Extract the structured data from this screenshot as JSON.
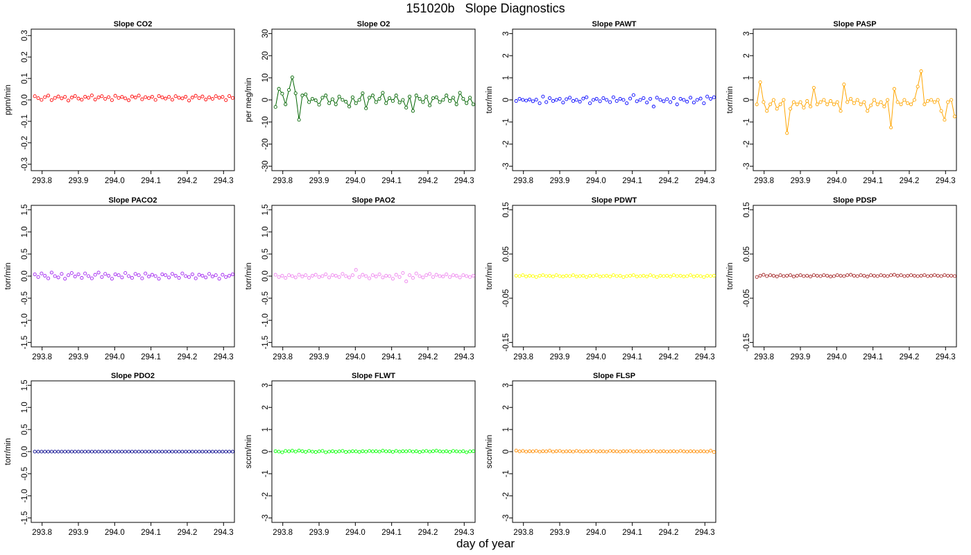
{
  "page": {
    "title": "151020b   Slope Diagnostics",
    "xlabel": "day of year"
  },
  "chart_data": [
    {
      "type": "scatter",
      "title": "Slope CO2",
      "ylabel": "ppm/min",
      "color": "#ff0000",
      "xlim": [
        293.77,
        294.33
      ],
      "xticks": [
        "293.8",
        "293.9",
        "294.0",
        "294.1",
        "294.2",
        "294.3"
      ],
      "ylim": [
        -0.33,
        0.33
      ],
      "yticks": [
        "-0.3",
        "-0.2",
        "-0.1",
        "0.0",
        "0.1",
        "0.2",
        "0.3"
      ],
      "connected": false,
      "x_start": 293.78,
      "x_end": 294.325,
      "base": 0.005,
      "series_values": [
        0.012,
        0.003,
        -0.005,
        0.008,
        0.015,
        -0.006,
        0.004,
        0.011,
        0.002,
        0.009,
        -0.008,
        0.006,
        0.013,
        0.001,
        -0.004,
        0.01,
        0.005,
        0.016,
        -0.003,
        0.007,
        0.012,
        0.0,
        0.008,
        -0.006,
        0.014,
        0.004,
        0.009,
        0.002,
        -0.007,
        0.011,
        0.006,
        0.015,
        -0.002,
        0.008,
        0.003,
        0.01,
        -0.005,
        0.013,
        0.007,
        0.001,
        0.009,
        -0.004,
        0.012,
        0.005,
        0.002,
        0.01,
        -0.008,
        0.006,
        0.014,
        0.003,
        0.011,
        -0.003,
        0.007,
        0.0,
        0.012,
        0.005,
        0.009,
        -0.006,
        0.013,
        0.004
      ]
    },
    {
      "type": "scatter",
      "title": "Slope O2",
      "ylabel": "per meg/min",
      "color": "#006400",
      "xlim": [
        293.77,
        294.33
      ],
      "xticks": [
        "293.8",
        "293.9",
        "294.0",
        "294.1",
        "294.2",
        "294.3"
      ],
      "ylim": [
        -32,
        32
      ],
      "yticks": [
        "-30",
        "-20",
        "-10",
        "0",
        "10",
        "20",
        "30"
      ],
      "connected": true,
      "x_start": 293.78,
      "x_end": 294.325,
      "base": 0,
      "series_values": [
        -3.2,
        5.0,
        2.8,
        -2.0,
        4.5,
        10.2,
        3.0,
        -9.0,
        2.0,
        2.5,
        -1.0,
        0.5,
        -0.2,
        -2.2,
        1.0,
        2.0,
        -1.5,
        0.3,
        -2.0,
        1.5,
        0.0,
        -0.8,
        -3.0,
        1.2,
        -1.5,
        0.0,
        3.0,
        -3.8,
        1.0,
        2.0,
        -1.0,
        0.5,
        3.2,
        -1.5,
        0.8,
        -0.5,
        2.0,
        -1.2,
        0.0,
        -3.5,
        1.5,
        -5.0,
        2.0,
        0.5,
        -1.0,
        1.5,
        -2.5,
        0.8,
        1.2,
        -1.0,
        0.0,
        2.0,
        -0.5,
        1.0,
        -2.0,
        3.2,
        0.5,
        -1.5,
        1.0,
        -2.0
      ]
    },
    {
      "type": "scatter",
      "title": "Slope PAWT",
      "ylabel": "torr/min",
      "color": "#0000ff",
      "xlim": [
        293.77,
        294.33
      ],
      "xticks": [
        "293.8",
        "293.9",
        "294.0",
        "294.1",
        "294.2",
        "294.3"
      ],
      "ylim": [
        -3.2,
        3.2
      ],
      "yticks": [
        "-3",
        "-2",
        "-1",
        "0",
        "1",
        "2",
        "3"
      ],
      "connected": false,
      "x_start": 293.78,
      "x_end": 294.325,
      "base": 0,
      "series_values": [
        -0.05,
        0.05,
        0.0,
        -0.03,
        0.02,
        -0.06,
        0.01,
        -0.15,
        0.15,
        -0.1,
        0.08,
        -0.05,
        0.0,
        0.05,
        -0.12,
        0.03,
        0.1,
        -0.05,
        0.0,
        -0.08,
        0.06,
        0.12,
        -0.15,
        0.0,
        0.05,
        -0.06,
        0.08,
        0.0,
        -0.1,
        0.12,
        -0.05,
        0.05,
        0.0,
        -0.15,
        0.06,
        0.22,
        -0.06,
        0.0,
        0.08,
        -0.12,
        0.05,
        -0.3,
        0.1,
        0.0,
        -0.06,
        0.03,
        -0.1,
        0.08,
        -0.2,
        0.05,
        0.0,
        -0.08,
        0.1,
        -0.12,
        0.0,
        0.06,
        -0.15,
        0.15,
        0.05,
        0.12
      ]
    },
    {
      "type": "scatter",
      "title": "Slope PASP",
      "ylabel": "torr/min",
      "color": "#ffa500",
      "xlim": [
        293.77,
        294.33
      ],
      "xticks": [
        "293.8",
        "293.9",
        "294.0",
        "294.1",
        "294.2",
        "294.3"
      ],
      "ylim": [
        -3.2,
        3.2
      ],
      "yticks": [
        "-3",
        "-2",
        "-1",
        "0",
        "1",
        "2",
        "3"
      ],
      "connected": true,
      "x_start": 293.78,
      "x_end": 294.325,
      "base": 0,
      "series_values": [
        -0.2,
        0.8,
        -0.1,
        -0.5,
        -0.2,
        0.0,
        -0.4,
        -0.2,
        0.0,
        -1.5,
        -0.4,
        -0.1,
        -0.2,
        -0.1,
        -0.35,
        -0.05,
        -0.3,
        0.55,
        -0.2,
        -0.1,
        0.0,
        -0.2,
        -0.05,
        -0.2,
        -0.1,
        -0.5,
        0.7,
        -0.1,
        0.05,
        -0.15,
        0.0,
        -0.2,
        -0.1,
        -0.5,
        -0.25,
        0.0,
        -0.2,
        -0.1,
        -0.3,
        0.0,
        -1.25,
        0.5,
        -0.1,
        -0.2,
        0.0,
        -0.15,
        -0.2,
        0.0,
        0.6,
        1.3,
        -0.2,
        -0.05,
        0.0,
        -0.1,
        0.0,
        -0.5,
        -0.9,
        -0.1,
        0.0,
        -0.75
      ]
    },
    {
      "type": "scatter",
      "title": "Slope PACO2",
      "ylabel": "torr/min",
      "color": "#a020f0",
      "xlim": [
        293.77,
        294.33
      ],
      "xticks": [
        "293.8",
        "293.9",
        "294.0",
        "294.1",
        "294.2",
        "294.3"
      ],
      "ylim": [
        -1.6,
        1.6
      ],
      "yticks": [
        "-1.5",
        "-1.0",
        "-0.5",
        "0.0",
        "0.5",
        "1.0",
        "1.5"
      ],
      "connected": false,
      "x_start": 293.78,
      "x_end": 294.325,
      "base": 0,
      "series_values": [
        0.04,
        -0.02,
        0.06,
        0.01,
        -0.05,
        0.08,
        0.0,
        -0.03,
        0.05,
        -0.06,
        0.02,
        0.07,
        -0.01,
        0.04,
        -0.04,
        0.06,
        0.0,
        -0.05,
        0.03,
        0.08,
        -0.02,
        0.05,
        0.01,
        -0.06,
        0.04,
        0.02,
        -0.03,
        0.07,
        0.0,
        -0.04,
        0.05,
        0.02,
        -0.05,
        0.06,
        -0.01,
        0.03,
        0.0,
        -0.06,
        0.04,
        0.02,
        -0.03,
        0.05,
        0.01,
        -0.04,
        0.06,
        0.0,
        -0.02,
        0.04,
        -0.05,
        0.03,
        0.01,
        -0.03,
        0.05,
        -0.01,
        0.02,
        -0.06,
        0.03,
        -0.02,
        0.01,
        0.04
      ]
    },
    {
      "type": "scatter",
      "title": "Slope PAO2",
      "ylabel": "torr/min",
      "color": "#ee82ee",
      "xlim": [
        293.77,
        294.33
      ],
      "xticks": [
        "293.8",
        "293.9",
        "294.0",
        "294.1",
        "294.2",
        "294.3"
      ],
      "ylim": [
        -1.6,
        1.6
      ],
      "yticks": [
        "-1.5",
        "-1.0",
        "-0.5",
        "0.0",
        "0.5",
        "1.0",
        "1.5"
      ],
      "connected": false,
      "x_start": 293.78,
      "x_end": 294.325,
      "base": 0,
      "series_values": [
        0.03,
        -0.02,
        0.01,
        -0.04,
        0.02,
        0.0,
        -0.03,
        0.03,
        -0.01,
        0.02,
        -0.04,
        0.01,
        0.03,
        -0.02,
        0.0,
        0.04,
        -0.03,
        0.02,
        0.01,
        -0.02,
        0.05,
        0.0,
        -0.03,
        0.02,
        0.14,
        -0.02,
        0.03,
        0.0,
        -0.05,
        0.02,
        -0.01,
        0.04,
        -0.03,
        0.01,
        0.0,
        -0.06,
        0.03,
        -0.02,
        0.07,
        -0.12,
        0.02,
        -0.04,
        0.06,
        0.0,
        -0.03,
        0.02,
        0.05,
        -0.02,
        0.03,
        0.0,
        -0.01,
        0.04,
        -0.02,
        0.02,
        0.01,
        -0.03,
        0.02,
        0.0,
        -0.02,
        0.01
      ]
    },
    {
      "type": "scatter",
      "title": "Slope PDWT",
      "ylabel": "torr/min",
      "color": "#ffff00",
      "xlim": [
        293.77,
        294.33
      ],
      "xticks": [
        "293.8",
        "293.9",
        "294.0",
        "294.1",
        "294.2",
        "294.3"
      ],
      "ylim": [
        -0.16,
        0.16
      ],
      "yticks": [
        "-0.15",
        "-0.05",
        "0.05",
        "0.15"
      ],
      "connected": false,
      "x_start": 293.78,
      "x_end": 294.325,
      "base": 0.0,
      "series_values": [
        0.001,
        0.0,
        0.002,
        -0.001,
        0.001,
        0.0,
        -0.002,
        0.001,
        0.002,
        0.0,
        0.001,
        -0.001,
        0.002,
        0.0,
        -0.001,
        0.001,
        0.0,
        0.002,
        -0.001,
        0.0,
        0.001,
        -0.002,
        0.001,
        0.0,
        0.002,
        -0.001,
        0.0,
        0.001,
        -0.001,
        0.002,
        0.0,
        0.001,
        -0.002,
        0.0,
        0.001,
        0.002,
        -0.001,
        0.0,
        0.001,
        -0.001,
        0.002,
        0.0,
        -0.002,
        0.001,
        0.0,
        0.001,
        -0.001,
        0.002,
        0.0,
        0.001,
        -0.001,
        0.0,
        0.002,
        -0.001,
        0.001,
        0.0,
        -0.002,
        0.001,
        0.0,
        0.001
      ]
    },
    {
      "type": "scatter",
      "title": "Slope PDSP",
      "ylabel": "torr/min",
      "color": "#a52a2a",
      "xlim": [
        293.77,
        294.33
      ],
      "xticks": [
        "293.8",
        "293.9",
        "294.0",
        "294.1",
        "294.2",
        "294.3"
      ],
      "ylim": [
        -0.16,
        0.16
      ],
      "yticks": [
        "-0.15",
        "-0.05",
        "0.05",
        "0.15"
      ],
      "connected": false,
      "x_start": 293.78,
      "x_end": 294.325,
      "base": 0.0,
      "series_values": [
        -0.002,
        0.001,
        0.003,
        0.0,
        0.002,
        0.001,
        -0.001,
        0.002,
        0.0,
        0.001,
        0.002,
        -0.001,
        0.001,
        0.002,
        0.0,
        0.001,
        -0.001,
        0.002,
        0.001,
        0.0,
        0.002,
        0.001,
        -0.001,
        0.0,
        0.002,
        0.001,
        0.0,
        0.002,
        0.003,
        0.001,
        0.0,
        0.002,
        0.001,
        -0.001,
        0.002,
        0.001,
        0.0,
        0.002,
        0.001,
        0.0,
        0.002,
        0.003,
        0.001,
        0.002,
        0.0,
        0.001,
        0.002,
        0.001,
        0.0,
        0.001,
        0.002,
        0.0,
        0.001,
        0.002,
        0.001,
        0.0,
        0.002,
        0.001,
        0.001,
        0.0
      ]
    },
    {
      "type": "scatter",
      "title": "Slope PDO2",
      "ylabel": "torr/min",
      "color": "#00008b",
      "xlim": [
        293.77,
        294.33
      ],
      "xticks": [
        "293.8",
        "293.9",
        "294.0",
        "294.1",
        "294.2",
        "294.3"
      ],
      "ylim": [
        -1.6,
        1.6
      ],
      "yticks": [
        "-1.5",
        "-1.0",
        "-0.5",
        "0.0",
        "0.5",
        "1.0",
        "1.5"
      ],
      "connected": false,
      "x_start": 293.78,
      "x_end": 294.325,
      "base": 0.0,
      "series_values": [
        0,
        0,
        0,
        0,
        0,
        0,
        0,
        0,
        0,
        0,
        0,
        0,
        0,
        0,
        0,
        0,
        0,
        0,
        0,
        0,
        0,
        0,
        0,
        0,
        0,
        0,
        0,
        0,
        0,
        0,
        0,
        0,
        0,
        0,
        0,
        0,
        0,
        0,
        0,
        0,
        0,
        0,
        0,
        0,
        0,
        0,
        0,
        0,
        0,
        0,
        0,
        0,
        0,
        0,
        0,
        0,
        0,
        0,
        0,
        0
      ]
    },
    {
      "type": "scatter",
      "title": "Slope FLWT",
      "ylabel": "sccm/min",
      "color": "#00ff00",
      "xlim": [
        293.77,
        294.33
      ],
      "xticks": [
        "293.8",
        "293.9",
        "294.0",
        "294.1",
        "294.2",
        "294.3"
      ],
      "ylim": [
        -3.2,
        3.2
      ],
      "yticks": [
        "-3",
        "-2",
        "-1",
        "0",
        "1",
        "2",
        "3"
      ],
      "connected": false,
      "x_start": 293.78,
      "x_end": 294.325,
      "base": 0.0,
      "series_values": [
        0.02,
        0.0,
        -0.03,
        0.03,
        0.01,
        0.04,
        0.0,
        0.05,
        0.02,
        -0.01,
        0.03,
        0.0,
        -0.02,
        0.01,
        0.03,
        -0.03,
        0.0,
        0.02,
        -0.01,
        0.01,
        0.03,
        -0.02,
        0.0,
        0.02,
        0.01,
        -0.01,
        0.02,
        0.0,
        0.03,
        0.01,
        0.02,
        0.0,
        0.04,
        0.01,
        0.02,
        -0.01,
        0.03,
        0.0,
        0.02,
        0.01,
        0.03,
        0.0,
        0.02,
        -0.02,
        0.01,
        0.03,
        0.0,
        0.02,
        0.04,
        0.01,
        0.0,
        0.02,
        -0.01,
        0.03,
        0.01,
        0.0,
        0.02,
        -0.03,
        0.01,
        0.02
      ]
    },
    {
      "type": "scatter",
      "title": "Slope FLSP",
      "ylabel": "sccm/min",
      "color": "#ff8c00",
      "xlim": [
        293.77,
        294.33
      ],
      "xticks": [
        "293.8",
        "293.9",
        "294.0",
        "294.1",
        "294.2",
        "294.3"
      ],
      "ylim": [
        -3.2,
        3.2
      ],
      "yticks": [
        "-3",
        "-2",
        "-1",
        "0",
        "1",
        "2",
        "3"
      ],
      "connected": false,
      "x_start": 293.78,
      "x_end": 294.325,
      "base": 0.0,
      "series_values": [
        0.05,
        0.01,
        0.03,
        0.0,
        0.02,
        0.01,
        0.03,
        0.0,
        0.02,
        0.01,
        0.04,
        0.0,
        0.02,
        0.03,
        0.0,
        0.01,
        0.02,
        0.0,
        0.03,
        0.01,
        0.0,
        0.02,
        0.01,
        0.03,
        0.0,
        0.02,
        0.01,
        0.0,
        0.03,
        0.02,
        0.01,
        0.0,
        0.02,
        0.01,
        0.03,
        0.0,
        0.02,
        0.01,
        0.0,
        0.02,
        0.01,
        0.03,
        0.0,
        0.01,
        0.02,
        0.0,
        0.01,
        0.02,
        0.0,
        0.03,
        0.01,
        0.0,
        0.02,
        0.01,
        0.0,
        0.02,
        0.01,
        0.0,
        0.04,
        -0.02
      ]
    }
  ]
}
